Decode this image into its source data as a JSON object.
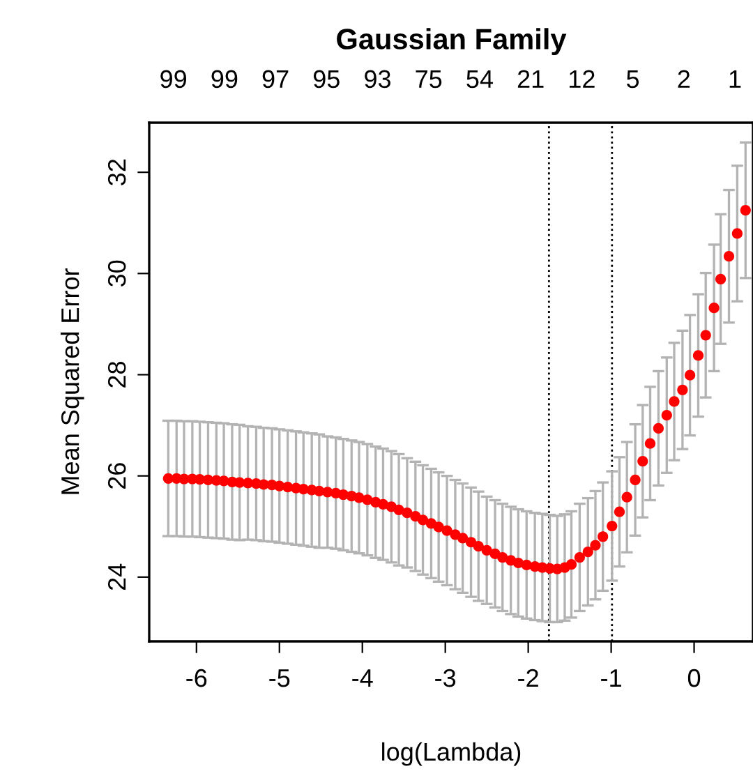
{
  "chart_data": {
    "type": "scatter",
    "title": "Gaussian Family",
    "xlabel": "log(Lambda)",
    "ylabel": "Mean Squared Error",
    "xlim": [
      -6.57,
      0.71
    ],
    "ylim": [
      22.73,
      32.98
    ],
    "xticks": [
      -6,
      -5,
      -4,
      -3,
      -2,
      -1,
      0
    ],
    "yticks": [
      24,
      26,
      28,
      30,
      32
    ],
    "annotations": [
      "99",
      "99",
      "97",
      "95",
      "93",
      "75",
      "54",
      "21",
      "12",
      "5",
      "2",
      "1"
    ],
    "grid": false,
    "legend": false,
    "marker": "circle",
    "ref_lines": [
      {
        "axis": "x",
        "value": -1.75,
        "color": "#000000",
        "line_style": "dotted"
      },
      {
        "axis": "x",
        "value": -0.99,
        "color": "#000000",
        "line_style": "dotted"
      }
    ],
    "series": [
      {
        "color": "#ff0000",
        "x": [
          -6.34,
          -6.24,
          -6.15,
          -6.05,
          -5.96,
          -5.86,
          -5.76,
          -5.67,
          -5.57,
          -5.48,
          -5.38,
          -5.28,
          -5.19,
          -5.09,
          -5.0,
          -4.9,
          -4.8,
          -4.71,
          -4.61,
          -4.52,
          -4.42,
          -4.32,
          -4.23,
          -4.13,
          -4.04,
          -3.94,
          -3.84,
          -3.75,
          -3.65,
          -3.56,
          -3.46,
          -3.36,
          -3.27,
          -3.17,
          -3.08,
          -2.98,
          -2.88,
          -2.79,
          -2.69,
          -2.6,
          -2.5,
          -2.4,
          -2.31,
          -2.21,
          -2.12,
          -2.02,
          -1.92,
          -1.83,
          -1.74,
          -1.65,
          -1.56,
          -1.48,
          -1.38,
          -1.28,
          -1.19,
          -1.1,
          -0.99,
          -0.9,
          -0.81,
          -0.71,
          -0.62,
          -0.53,
          -0.43,
          -0.33,
          -0.24,
          -0.14,
          -0.05,
          0.05,
          0.14,
          0.24,
          0.32,
          0.42,
          0.52,
          0.62
        ],
        "values": [
          25.95,
          25.95,
          25.94,
          25.94,
          25.93,
          25.92,
          25.91,
          25.9,
          25.88,
          25.87,
          25.86,
          25.85,
          25.83,
          25.82,
          25.8,
          25.78,
          25.76,
          25.74,
          25.72,
          25.7,
          25.68,
          25.66,
          25.63,
          25.6,
          25.57,
          25.53,
          25.48,
          25.44,
          25.39,
          25.33,
          25.27,
          25.2,
          25.13,
          25.06,
          24.99,
          24.92,
          24.84,
          24.77,
          24.69,
          24.61,
          24.53,
          24.46,
          24.39,
          24.33,
          24.28,
          24.24,
          24.21,
          24.19,
          24.17,
          24.16,
          24.19,
          24.25,
          24.39,
          24.5,
          24.63,
          24.8,
          25.01,
          25.29,
          25.58,
          25.92,
          26.29,
          26.64,
          26.94,
          27.2,
          27.47,
          27.7,
          27.99,
          28.38,
          28.78,
          29.32,
          29.89,
          30.34,
          30.79,
          31.25
        ],
        "errors": [
          1.14,
          1.14,
          1.14,
          1.14,
          1.14,
          1.14,
          1.14,
          1.14,
          1.14,
          1.14,
          1.12,
          1.12,
          1.12,
          1.12,
          1.12,
          1.12,
          1.12,
          1.12,
          1.12,
          1.12,
          1.1,
          1.1,
          1.1,
          1.1,
          1.1,
          1.1,
          1.1,
          1.1,
          1.1,
          1.1,
          1.08,
          1.08,
          1.08,
          1.08,
          1.08,
          1.08,
          1.08,
          1.08,
          1.08,
          1.08,
          1.06,
          1.06,
          1.06,
          1.06,
          1.06,
          1.06,
          1.06,
          1.06,
          1.06,
          1.05,
          1.05,
          1.05,
          1.06,
          1.06,
          1.07,
          1.07,
          1.08,
          1.08,
          1.09,
          1.1,
          1.11,
          1.12,
          1.13,
          1.14,
          1.16,
          1.17,
          1.19,
          1.21,
          1.23,
          1.25,
          1.28,
          1.31,
          1.34,
          1.34
        ]
      }
    ]
  }
}
